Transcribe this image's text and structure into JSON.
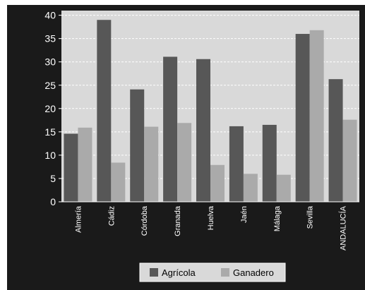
{
  "chart_data": {
    "type": "bar",
    "categories": [
      "Almería",
      "Cádiz",
      "Córdoba",
      "Granada",
      "Huelva",
      "Jaén",
      "Málaga",
      "Sevilla",
      "ANDALUCÍA"
    ],
    "series": [
      {
        "name": "Agrícola",
        "values": [
          14.6,
          39.0,
          24.1,
          31.1,
          30.6,
          16.2,
          16.5,
          36.0,
          26.3
        ]
      },
      {
        "name": "Ganadero",
        "values": [
          15.9,
          8.4,
          16.1,
          16.9,
          7.9,
          6.0,
          5.8,
          36.8,
          17.6
        ]
      }
    ],
    "y_ticks": [
      "0",
      "5",
      "10",
      "15",
      "20",
      "25",
      "30",
      "35",
      "40"
    ],
    "ylim": [
      0,
      41
    ],
    "grid": true,
    "legend_position": "bottom-center",
    "colors": {
      "background": "#1a1a1a",
      "plot_area": "#d9d9d9",
      "legend_box": "#d9d9d9",
      "gridline": "#ffffff",
      "agricola": "#575757",
      "ganadero": "#aaaaaa"
    }
  }
}
